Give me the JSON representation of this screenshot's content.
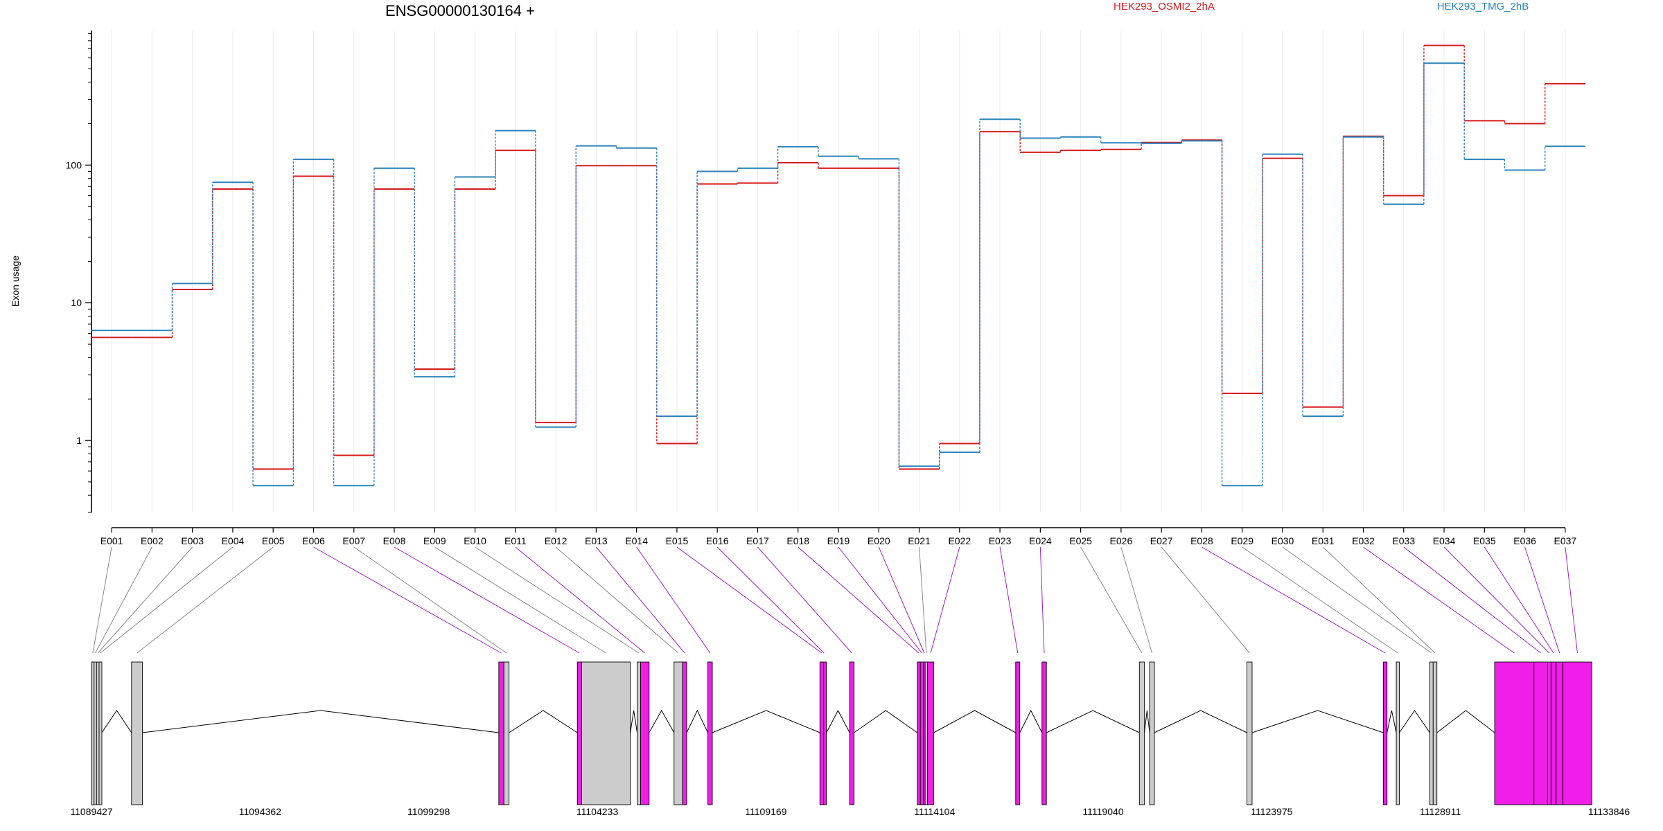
{
  "chart_data": {
    "type": "line",
    "title": "ENSG00000130164 +",
    "ylabel": "Exon usage",
    "yscale": "log",
    "ylim": [
      0.3,
      950
    ],
    "yticks": [
      1,
      10,
      100
    ],
    "ytick_labels": [
      "1",
      "10",
      "100"
    ],
    "grid": "vertical",
    "legend_position": "top",
    "categories": [
      "E001",
      "E002",
      "E003",
      "E004",
      "E005",
      "E006",
      "E007",
      "E008",
      "E009",
      "E010",
      "E011",
      "E012",
      "E013",
      "E014",
      "E015",
      "E016",
      "E017",
      "E018",
      "E019",
      "E020",
      "E021",
      "E022",
      "E023",
      "E024",
      "E025",
      "E026",
      "E027",
      "E028",
      "E029",
      "E030",
      "E031",
      "E032",
      "E033",
      "E034",
      "E035",
      "E036",
      "E037"
    ],
    "series": [
      {
        "name": "HEK293_OSMI2_2hA",
        "color": "#d7191c",
        "values": [
          5.6,
          5.6,
          12.5,
          67,
          0.62,
          83,
          0.78,
          67,
          3.3,
          67,
          128,
          1.35,
          99,
          99,
          0.95,
          73,
          74,
          104,
          95,
          95,
          0.62,
          0.95,
          175,
          124,
          128,
          130,
          146,
          152,
          2.2,
          112,
          1.75,
          162,
          60,
          740,
          210,
          200,
          390
        ]
      },
      {
        "name": "HEK293_TMG_2hB",
        "color": "#2b83ba",
        "values": [
          6.3,
          6.3,
          13.8,
          75,
          0.47,
          110,
          0.47,
          95,
          2.9,
          82,
          178,
          1.25,
          138,
          133,
          1.5,
          90,
          95,
          136,
          116,
          111,
          0.65,
          0.82,
          215,
          157,
          160,
          145,
          144,
          150,
          0.47,
          120,
          1.5,
          160,
          52,
          550,
          110,
          92,
          137
        ]
      }
    ],
    "gene_model": {
      "coordinates": [
        "11089427",
        "11094362",
        "11099298",
        "11104233",
        "11109169",
        "11114104",
        "11119040",
        "11123975",
        "11128911",
        "11133846"
      ],
      "genome_range": [
        11089427,
        11133846
      ],
      "highlight_color": "#f01ee8",
      "exon_color": "#cccccc",
      "exons": [
        {
          "id": "E001",
          "start": 11089427,
          "end": 11089502,
          "highlight": false
        },
        {
          "id": "E002",
          "start": 11089502,
          "end": 11089575,
          "highlight": false
        },
        {
          "id": "E003",
          "start": 11089575,
          "end": 11089650,
          "highlight": false
        },
        {
          "id": "E004",
          "start": 11089650,
          "end": 11089720,
          "highlight": false
        },
        {
          "id": "E005",
          "start": 11090600,
          "end": 11090920,
          "highlight": false
        },
        {
          "id": "E006",
          "start": 11101350,
          "end": 11101500,
          "highlight": true
        },
        {
          "id": "E007",
          "start": 11101500,
          "end": 11101650,
          "highlight": false
        },
        {
          "id": "E008",
          "start": 11103650,
          "end": 11103775,
          "highlight": true
        },
        {
          "id": "E009",
          "start": 11103775,
          "end": 11105200,
          "highlight": false
        },
        {
          "id": "E010",
          "start": 11105400,
          "end": 11105500,
          "highlight": false
        },
        {
          "id": "E011",
          "start": 11105500,
          "end": 11105750,
          "highlight": true
        },
        {
          "id": "E012",
          "start": 11106480,
          "end": 11106730,
          "highlight": false
        },
        {
          "id": "E013",
          "start": 11106730,
          "end": 11106850,
          "highlight": true
        },
        {
          "id": "E014",
          "start": 11107470,
          "end": 11107600,
          "highlight": true
        },
        {
          "id": "E015",
          "start": 11110750,
          "end": 11110860,
          "highlight": true
        },
        {
          "id": "E016",
          "start": 11110860,
          "end": 11110880,
          "highlight": true
        },
        {
          "id": "E017",
          "start": 11111620,
          "end": 11111750,
          "highlight": true
        },
        {
          "id": "E018",
          "start": 11113600,
          "end": 11113690,
          "highlight": true
        },
        {
          "id": "E019",
          "start": 11113690,
          "end": 11113780,
          "highlight": true
        },
        {
          "id": "E020",
          "start": 11113780,
          "end": 11113830,
          "highlight": true
        },
        {
          "id": "E021",
          "start": 11113830,
          "end": 11113900,
          "highlight": false
        },
        {
          "id": "E022",
          "start": 11113900,
          "end": 11114080,
          "highlight": true
        },
        {
          "id": "E023",
          "start": 11116480,
          "end": 11116600,
          "highlight": true
        },
        {
          "id": "E024",
          "start": 11117250,
          "end": 11117380,
          "highlight": true
        },
        {
          "id": "E025",
          "start": 11120100,
          "end": 11120250,
          "highlight": false
        },
        {
          "id": "E026",
          "start": 11120400,
          "end": 11120540,
          "highlight": false
        },
        {
          "id": "E027",
          "start": 11123250,
          "end": 11123400,
          "highlight": false
        },
        {
          "id": "E028",
          "start": 11127240,
          "end": 11127350,
          "highlight": true
        },
        {
          "id": "E029",
          "start": 11127620,
          "end": 11127710,
          "highlight": false
        },
        {
          "id": "E030",
          "start": 11128600,
          "end": 11128700,
          "highlight": false
        },
        {
          "id": "E031",
          "start": 11128700,
          "end": 11128810,
          "highlight": false
        },
        {
          "id": "E032",
          "start": 11130500,
          "end": 11131650,
          "highlight": true
        },
        {
          "id": "E033",
          "start": 11131650,
          "end": 11132050,
          "highlight": true
        },
        {
          "id": "E034",
          "start": 11132050,
          "end": 11132150,
          "highlight": true
        },
        {
          "id": "E035",
          "start": 11132150,
          "end": 11132300,
          "highlight": true
        },
        {
          "id": "E036",
          "start": 11132300,
          "end": 11132500,
          "highlight": true
        },
        {
          "id": "E037",
          "start": 11132500,
          "end": 11133346,
          "highlight": true
        }
      ]
    }
  }
}
